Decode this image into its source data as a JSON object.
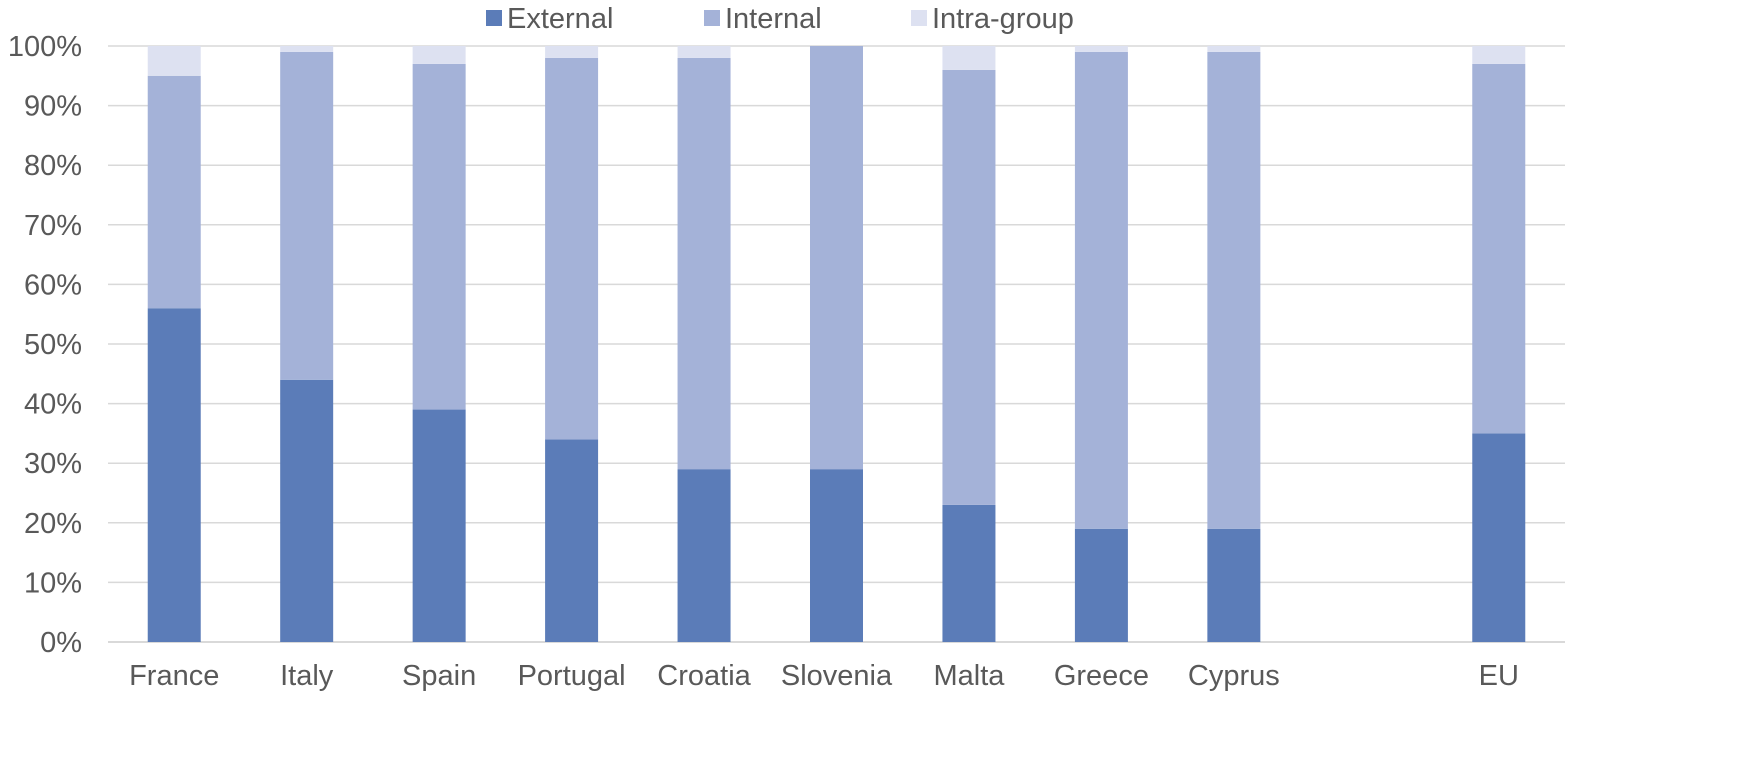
{
  "chart_data": {
    "type": "bar",
    "stacked": true,
    "title": "",
    "xlabel": "",
    "ylabel": "",
    "ylim": [
      0,
      100
    ],
    "yticks": [
      "0%",
      "10%",
      "20%",
      "30%",
      "40%",
      "50%",
      "60%",
      "70%",
      "80%",
      "90%",
      "100%"
    ],
    "grid": true,
    "legend_position": "top-center",
    "categories": [
      "France",
      "Italy",
      "Spain",
      "Portugal",
      "Croatia",
      "Slovenia",
      "Malta",
      "Greece",
      "Cyprus",
      "",
      "EU"
    ],
    "series": [
      {
        "name": "External",
        "color": "#5b7cb8",
        "values": [
          56,
          44,
          39,
          34,
          29,
          29,
          23,
          19,
          19,
          null,
          35
        ]
      },
      {
        "name": "Internal",
        "color": "#a4b2d8",
        "values": [
          39,
          55,
          58,
          64,
          69,
          71,
          73,
          80,
          80,
          null,
          62
        ]
      },
      {
        "name": "Intra-group",
        "color": "#dde1f1",
        "values": [
          5,
          1,
          3,
          2,
          2,
          0,
          4,
          1,
          1,
          null,
          3
        ]
      }
    ],
    "gridline_color": "#d9d9d9",
    "axis_line_color": "#d9d9d9"
  }
}
